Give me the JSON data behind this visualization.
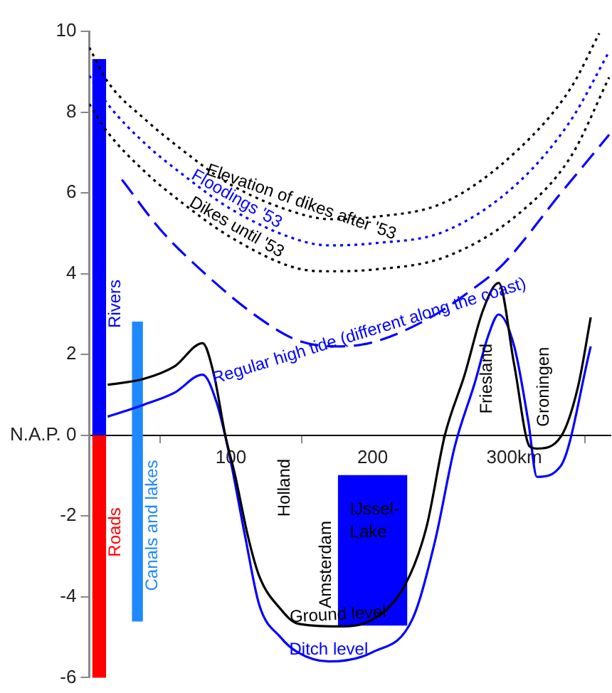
{
  "chart_data": {
    "type": "line",
    "xlim": [
      0,
      368
    ],
    "xticks": [
      100,
      200,
      {
        "value": 300,
        "label": "300km"
      }
    ],
    "ylim": [
      -6,
      10
    ],
    "yticks": [
      -6,
      -4,
      -2,
      {
        "value": 0,
        "label": "N.A.P. 0"
      },
      2,
      4,
      6,
      8,
      10
    ],
    "grid": false,
    "legend": false,
    "marker": "none",
    "annotations": [
      "Holland",
      "Amsterdam",
      "Friesland",
      "Groningen"
    ],
    "series": [
      {
        "name": "Rivers",
        "type": "bar",
        "color": "#0000ff",
        "x": [
          7
        ],
        "base": [
          0
        ],
        "values": [
          9.3
        ]
      },
      {
        "name": "Roads",
        "type": "bar",
        "color": "#ff0000",
        "x": [
          7
        ],
        "base": [
          0
        ],
        "values": [
          -6
        ]
      },
      {
        "name": "Canals and lakes",
        "type": "bar",
        "color": "#1e88ff",
        "x": [
          34
        ],
        "base": [
          -4.6
        ],
        "values": [
          7.4
        ]
      },
      {
        "name": "IJssel-Lake",
        "type": "bar",
        "color": "#0000ff",
        "x": [
          200
        ],
        "base": [
          -4.7
        ],
        "values": [
          3.7
        ]
      },
      {
        "name": "Elevation of dikes after '53",
        "line_style": "dotted",
        "color": "#000000",
        "x": [
          0,
          13,
          40,
          65,
          100,
          147,
          170,
          200,
          251,
          303,
          340,
          360
        ],
        "values": [
          9.6,
          8.75,
          7.8,
          7.08,
          6.2,
          5.5,
          5.35,
          5.4,
          5.77,
          7.08,
          8.6,
          9.95
        ]
      },
      {
        "name": "Floodings '53",
        "line_style": "dotted",
        "color": "#0000ff",
        "x": [
          0,
          13,
          40,
          65,
          100,
          147,
          170,
          200,
          251,
          303,
          340,
          367
        ],
        "values": [
          8.9,
          8.2,
          7.2,
          6.48,
          5.6,
          4.84,
          4.7,
          4.75,
          5.05,
          6.26,
          7.8,
          9.5
        ]
      },
      {
        "name": "Dikes until '53",
        "line_style": "dotted",
        "color": "#000000",
        "x": [
          0,
          13,
          40,
          65,
          100,
          147,
          170,
          200,
          251,
          303,
          340,
          367
        ],
        "values": [
          8.2,
          7.5,
          6.5,
          5.77,
          4.9,
          4.13,
          4.06,
          4.1,
          4.41,
          5.48,
          6.9,
          8.86
        ]
      },
      {
        "name": "Regular high tide (different along the coast)",
        "line_style": "dashed",
        "color": "#0000ff",
        "x": [
          23,
          50,
          82,
          120,
          147,
          175,
          200,
          240,
          270,
          292,
          333,
          367
        ],
        "values": [
          6.33,
          5.1,
          3.99,
          2.9,
          2.35,
          2.2,
          2.3,
          2.9,
          3.6,
          4.23,
          6.0,
          7.44
        ]
      },
      {
        "name": "Ground level",
        "line_style": "solid",
        "color": "#000000",
        "x": [
          13,
          38,
          60,
          80,
          88,
          96,
          103,
          112,
          120,
          135,
          147,
          176,
          200,
          223,
          238,
          251,
          265,
          278,
          289,
          300,
          311,
          316,
          333,
          345,
          354
        ],
        "values": [
          1.25,
          1.39,
          1.7,
          2.28,
          1.5,
          0,
          -1,
          -2.5,
          -3.49,
          -4.3,
          -4.66,
          -4.73,
          -4.56,
          -3.7,
          -2.28,
          0,
          1.5,
          3.1,
          3.77,
          1.74,
          -0.28,
          -0.33,
          -0.03,
          1.2,
          2.92
        ]
      },
      {
        "name": "Ditch level",
        "line_style": "solid",
        "color": "#0000ff",
        "x": [
          13,
          38,
          60,
          80,
          90,
          99,
          110,
          120,
          135,
          147,
          169,
          200,
          228,
          244,
          258,
          272,
          282,
          289,
          300,
          310,
          316,
          333,
          354
        ],
        "values": [
          0.46,
          0.75,
          1.05,
          1.5,
          0.8,
          -0.5,
          -2.5,
          -4.2,
          -5.0,
          -5.37,
          -5.6,
          -5.37,
          -4.56,
          -2.63,
          -0.28,
          1.28,
          2.5,
          2.99,
          2.2,
          0.32,
          -1.03,
          -0.75,
          2.2
        ]
      }
    ]
  }
}
